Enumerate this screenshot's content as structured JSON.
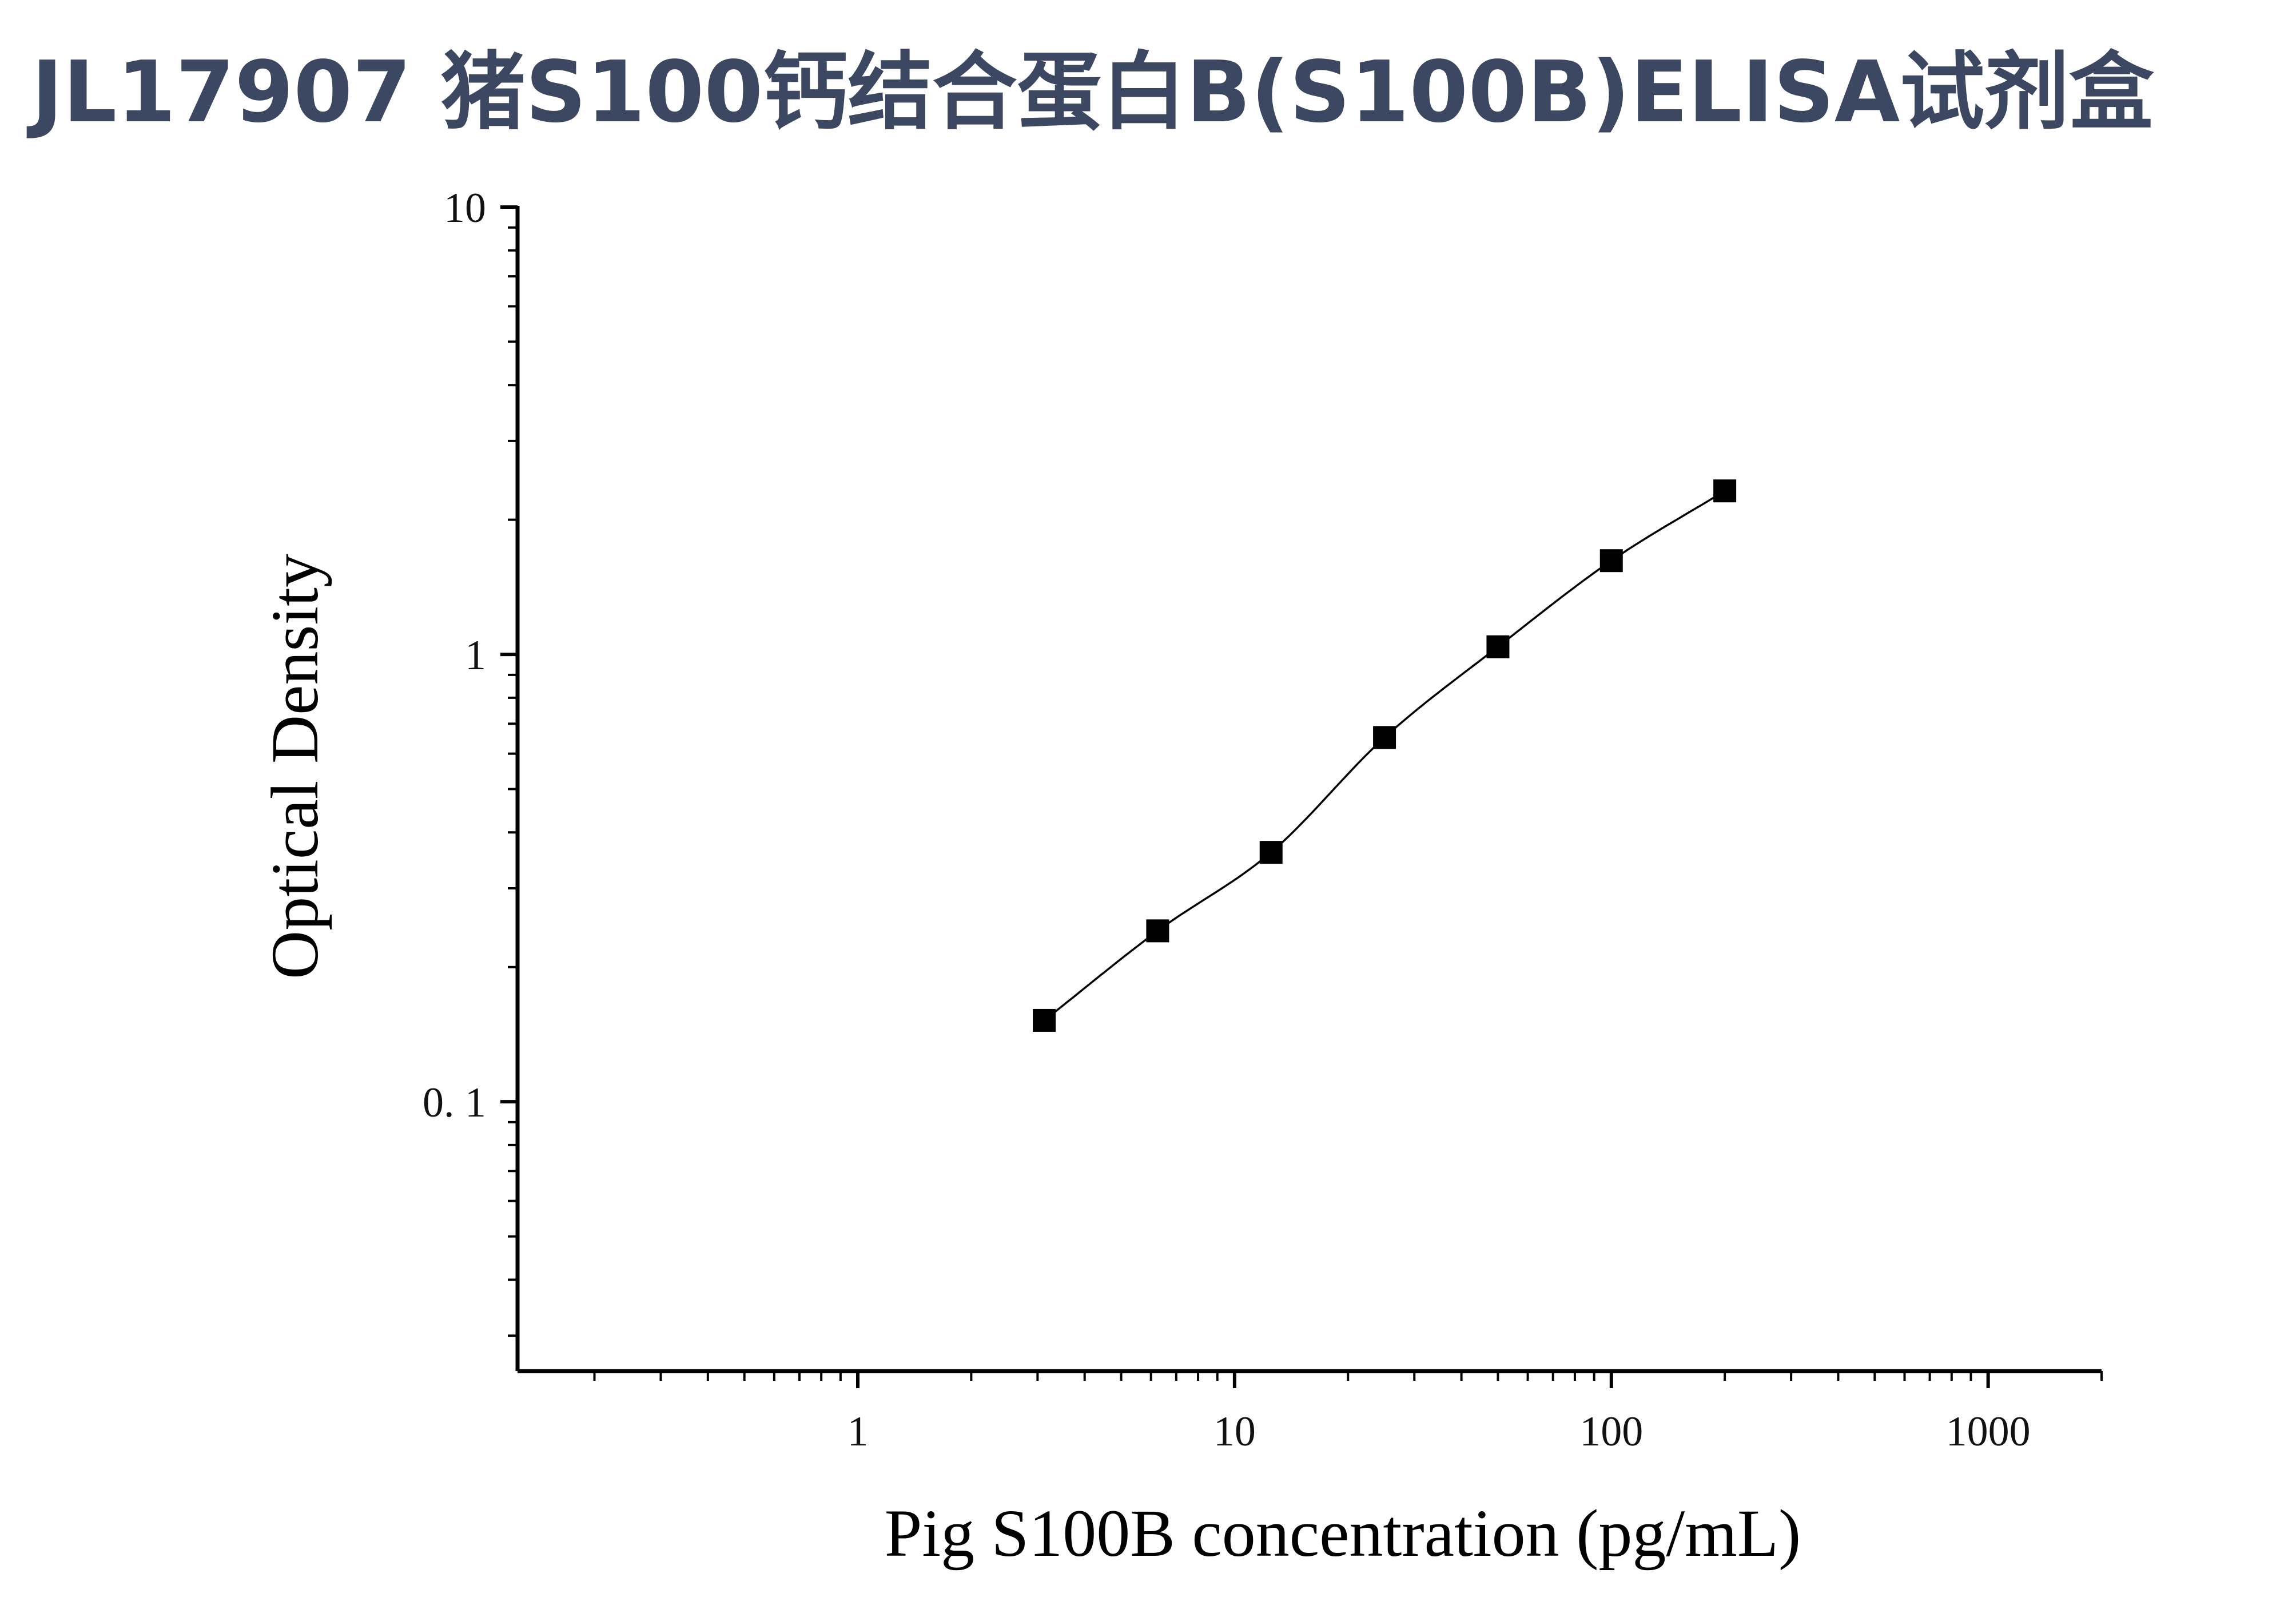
{
  "title": "JL17907 猪S100钙结合蛋白B(S100B)ELISA试剂盒",
  "chart_data": {
    "type": "scatter",
    "xlabel": "Pig S100B concentration (pg/mL)",
    "ylabel": "Optical Density",
    "x_scale": "log",
    "y_scale": "log",
    "xlim": [
      0.125,
      2000
    ],
    "ylim": [
      0.025,
      10
    ],
    "x_ticks": [
      {
        "value": 1,
        "label": "1"
      },
      {
        "value": 10,
        "label": "10"
      },
      {
        "value": 100,
        "label": "100"
      },
      {
        "value": 1000,
        "label": "1000"
      }
    ],
    "y_ticks": [
      {
        "value": 0.1,
        "label": "0. 1"
      },
      {
        "value": 1,
        "label": "1"
      },
      {
        "value": 10,
        "label": "10"
      }
    ],
    "grid": false,
    "series": [
      {
        "marker": "square",
        "fit_line": "smooth",
        "points": [
          {
            "x": 3.125,
            "y": 0.152
          },
          {
            "x": 6.25,
            "y": 0.241
          },
          {
            "x": 12.5,
            "y": 0.361
          },
          {
            "x": 25,
            "y": 0.652
          },
          {
            "x": 50,
            "y": 1.04
          },
          {
            "x": 100,
            "y": 1.62
          },
          {
            "x": 200,
            "y": 2.32
          }
        ]
      }
    ],
    "colors": {
      "marker": "#000000",
      "line": "#000000",
      "axis": "#000000"
    }
  }
}
